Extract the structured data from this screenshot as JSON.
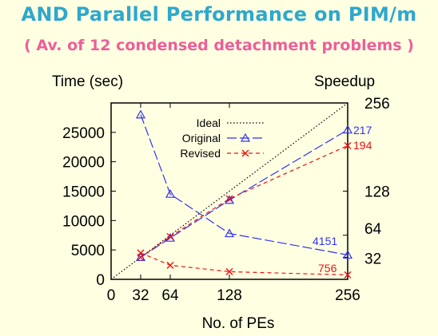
{
  "slide": {
    "title": "AND Parallel Performance on PIM/m",
    "subtitle": "( Av. of 12 condensed detachment problems )"
  },
  "chart_data": {
    "type": "line",
    "title": "AND Parallel Performance on PIM/m",
    "subtitle": "( Av. of 12 condensed detachment problems )",
    "xlabel": "No. of PEs",
    "ylabel_left": "Time (sec)",
    "ylabel_right": "Speedup",
    "x": [
      32,
      64,
      128,
      256
    ],
    "xlim": [
      0,
      256
    ],
    "x_ticks": [
      "0",
      "32",
      "64",
      "128",
      "256"
    ],
    "y_left_lim": [
      0,
      30000
    ],
    "y_left_ticks": [
      "0",
      "5000",
      "10000",
      "15000",
      "20000",
      "25000"
    ],
    "y_right_ticks": [
      "32",
      "64",
      "128",
      "256"
    ],
    "legend_position": "top-center",
    "series": [
      {
        "name": "Ideal",
        "style": "dotted",
        "color": "#000000",
        "points": [
          [
            0,
            0
          ],
          [
            256,
            256
          ]
        ]
      },
      {
        "name": "Original",
        "style": "long-dash",
        "marker": "triangle",
        "color": "#3333ee",
        "speedup": [
          32,
          60,
          115,
          217
        ],
        "time": [
          28000,
          14500,
          7800,
          4151
        ]
      },
      {
        "name": "Revised",
        "style": "dashed",
        "marker": "x",
        "color": "#ee1111",
        "speedup": [
          32,
          62,
          117,
          194
        ],
        "time": [
          4500,
          2400,
          1300,
          756
        ]
      }
    ],
    "annotations": {
      "original_speedup_256": "217",
      "revised_speedup_256": "194",
      "original_time_256": "4151",
      "revised_time_256": "756"
    }
  }
}
